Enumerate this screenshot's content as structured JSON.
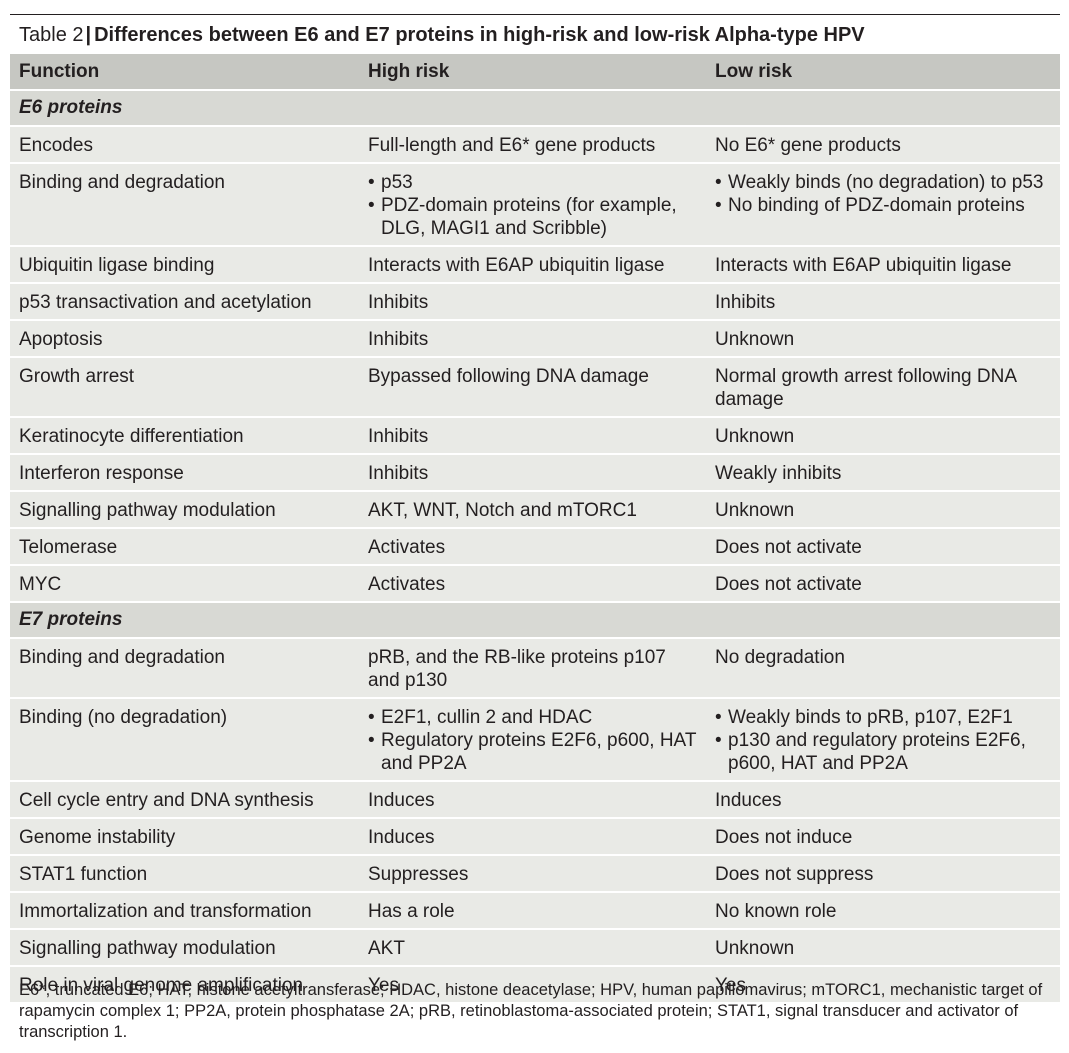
{
  "table": {
    "label": "Table 2",
    "separator": "|",
    "title": "Differences between E6 and E7 proteins in high-risk and low-risk Alpha-type HPV",
    "headers": [
      "Function",
      "High risk",
      "Low risk"
    ],
    "sections": [
      {
        "name": "E6 proteins",
        "rows": [
          {
            "function": "Encodes",
            "high": [
              "Full-length and E6* gene products"
            ],
            "low": [
              "No E6* gene products"
            ]
          },
          {
            "function": "Binding and degradation",
            "high_bullets": true,
            "low_bullets": true,
            "high": [
              "p53",
              "PDZ-domain proteins (for example, DLG, MAGI1 and Scribble)"
            ],
            "low": [
              "Weakly binds (no degradation) to p53",
              "No binding of PDZ-domain proteins"
            ]
          },
          {
            "function": "Ubiquitin ligase binding",
            "high": [
              "Interacts with E6AP ubiquitin ligase"
            ],
            "low": [
              "Interacts with E6AP ubiquitin ligase"
            ]
          },
          {
            "function": "p53 transactivation and acetylation",
            "high": [
              "Inhibits"
            ],
            "low": [
              "Inhibits"
            ]
          },
          {
            "function": "Apoptosis",
            "high": [
              "Inhibits"
            ],
            "low": [
              "Unknown"
            ]
          },
          {
            "function": "Growth arrest",
            "high": [
              "Bypassed following DNA damage"
            ],
            "low": [
              "Normal growth arrest following DNA damage"
            ]
          },
          {
            "function": "Keratinocyte differentiation",
            "high": [
              "Inhibits"
            ],
            "low": [
              "Unknown"
            ]
          },
          {
            "function": "Interferon response",
            "high": [
              "Inhibits"
            ],
            "low": [
              "Weakly inhibits"
            ]
          },
          {
            "function": "Signalling pathway modulation",
            "high": [
              "AKT, WNT, Notch and mTORC1"
            ],
            "low": [
              "Unknown"
            ]
          },
          {
            "function": "Telomerase",
            "high": [
              "Activates"
            ],
            "low": [
              "Does not activate"
            ]
          },
          {
            "function": "MYC",
            "high": [
              "Activates"
            ],
            "low": [
              "Does not activate"
            ]
          }
        ]
      },
      {
        "name": "E7 proteins",
        "rows": [
          {
            "function": "Binding and degradation",
            "high": [
              "pRB, and the RB-like proteins p107 and p130"
            ],
            "low": [
              "No degradation"
            ]
          },
          {
            "function": "Binding (no degradation)",
            "high_bullets": true,
            "low_bullets": true,
            "high": [
              "E2F1, cullin 2 and HDAC",
              "Regulatory proteins E2F6, p600, HAT and PP2A"
            ],
            "low": [
              "Weakly binds to pRB, p107, E2F1",
              "p130 and regulatory proteins E2F6, p600, HAT and PP2A"
            ]
          },
          {
            "function": "Cell cycle entry and DNA synthesis",
            "high": [
              "Induces"
            ],
            "low": [
              "Induces"
            ]
          },
          {
            "function": "Genome instability",
            "high": [
              "Induces"
            ],
            "low": [
              "Does not induce"
            ]
          },
          {
            "function": "STAT1 function",
            "high": [
              "Suppresses"
            ],
            "low": [
              "Does not suppress"
            ]
          },
          {
            "function": "Immortalization and transformation",
            "high": [
              "Has a role"
            ],
            "low": [
              "No known role"
            ]
          },
          {
            "function": "Signalling pathway modulation",
            "high": [
              "AKT"
            ],
            "low": [
              "Unknown"
            ]
          },
          {
            "function": "Role in viral genome amplification",
            "high": [
              "Yes"
            ],
            "low": [
              "Yes"
            ]
          }
        ]
      }
    ],
    "footnote": "E6*, truncated E6; HAT, histone acetyltransferase; HDAC, histone deacetylase; HPV, human papillomavirus; mTORC1, mechanistic target of rapamycin complex 1; PP2A, protein phosphatase 2A; pRB, retinoblastoma-associated protein; STAT1, signal transducer and activator of transcription 1."
  },
  "colors": {
    "header_bg": "#c6c7c2",
    "section_bg": "#d8d9d4",
    "row_bg": "#e9eae6",
    "text": "#231f20"
  }
}
